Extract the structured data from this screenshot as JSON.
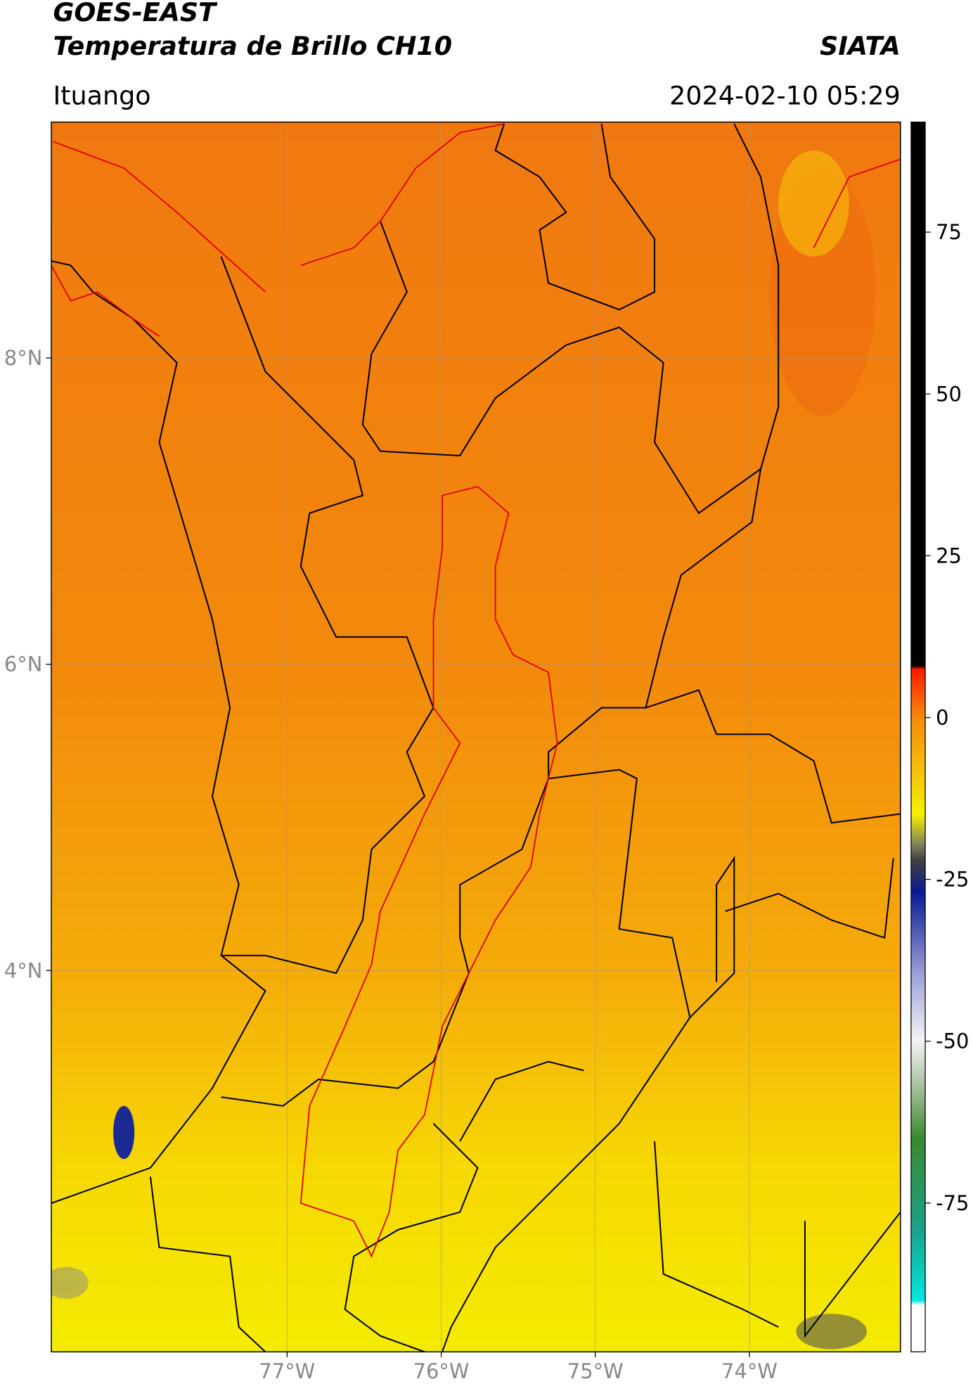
{
  "header": {
    "title_line1": "GOES-EAST",
    "title_line2": "Temperatura de Brillo CH10",
    "brand": "SIATA",
    "location": "Ituango",
    "datetime": "2024-02-10 05:29"
  },
  "map": {
    "xlim": [
      -78.53,
      -73.02
    ],
    "ylim": [
      1.51,
      9.54
    ],
    "xticks": [
      {
        "value": -77,
        "label": "77°W"
      },
      {
        "value": -76,
        "label": "76°W"
      },
      {
        "value": -75,
        "label": "75°W"
      },
      {
        "value": -74,
        "label": "74°W"
      }
    ],
    "yticks": [
      {
        "value": 8,
        "label": "8°N"
      },
      {
        "value": 6,
        "label": "6°N"
      },
      {
        "value": 4,
        "label": "4°N"
      }
    ],
    "grid": true
  },
  "colorbar": {
    "lim": [
      -98,
      92
    ],
    "ticks": [
      75,
      50,
      25,
      0,
      -25,
      -50,
      -75
    ]
  }
}
